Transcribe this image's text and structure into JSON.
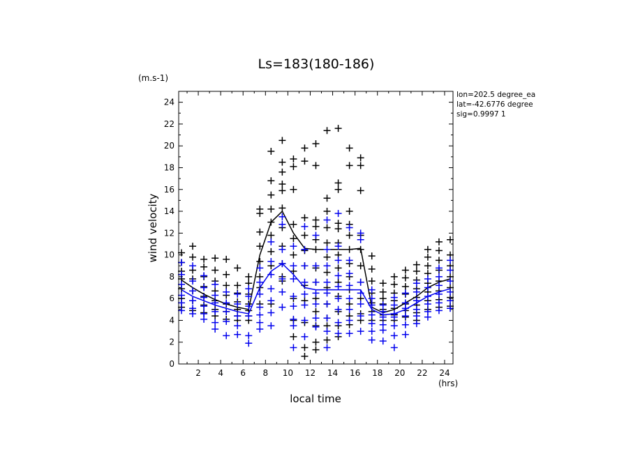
{
  "chart_data": {
    "type": "scatter",
    "title": "Ls=183(180-186)",
    "xlabel": "local time",
    "ylabel": "wind velocity",
    "x_unit": "(hrs)",
    "y_unit": "(m.s-1)",
    "xlim": [
      0.25,
      24.75
    ],
    "ylim": [
      0,
      25
    ],
    "xticks": [
      2,
      4,
      6,
      8,
      10,
      12,
      14,
      16,
      18,
      20,
      22,
      24
    ],
    "yticks": [
      0,
      2,
      4,
      6,
      8,
      10,
      12,
      14,
      16,
      18,
      20,
      22,
      24
    ],
    "grid": false,
    "info": [
      "lon=202.5 degree_ea",
      "lat=-42.6776 degree",
      "sig=0.9997 1"
    ],
    "x": [
      0.5,
      1.5,
      2.5,
      3.5,
      4.5,
      5.5,
      6.5,
      7.5,
      8.5,
      9.5,
      10.5,
      11.5,
      12.5,
      13.5,
      14.5,
      15.5,
      16.5,
      17.5,
      18.5,
      19.5,
      20.5,
      21.5,
      22.5,
      23.5,
      24.5
    ],
    "series": [
      {
        "color": "#000000",
        "mean": [
          7.7,
          7.0,
          6.4,
          5.9,
          5.5,
          5.2,
          5.0,
          10.0,
          13.0,
          14.0,
          12.0,
          10.6,
          10.5,
          10.5,
          10.5,
          10.5,
          10.6,
          5.2,
          4.7,
          5.0,
          5.6,
          6.2,
          7.0,
          7.5,
          7.8
        ],
        "points": [
          [
            10.2,
            9.3,
            8.5,
            7.8,
            6.9,
            6.0,
            5.2
          ],
          [
            10.8,
            9.8,
            8.6,
            7.8,
            6.7,
            5.8,
            4.9
          ],
          [
            9.6,
            8.9,
            8.0,
            7.1,
            6.2,
            5.4,
            4.7
          ],
          [
            9.7,
            8.6,
            7.6,
            6.7,
            5.8,
            5.0,
            4.4
          ],
          [
            9.6,
            8.2,
            7.2,
            6.3,
            5.5,
            4.8,
            4.1
          ],
          [
            8.8,
            7.2,
            6.5,
            5.7,
            5.0,
            4.4,
            4.0
          ],
          [
            8.0,
            7.4,
            6.4,
            5.5,
            4.9,
            4.4,
            4.0
          ],
          [
            14.2,
            13.8,
            12.1,
            10.8,
            9.4,
            8.0,
            7.0,
            5.5
          ],
          [
            19.5,
            16.8,
            15.5,
            14.2,
            13.0,
            11.8,
            10.3,
            9.0,
            5.5
          ],
          [
            20.5,
            18.5,
            17.6,
            16.5,
            15.9,
            14.3,
            12.5,
            10.8,
            9.2,
            8.0,
            7.6
          ],
          [
            18.8,
            18.1,
            16.0,
            12.8,
            11.5,
            10.0,
            8.5,
            6.0,
            4.0,
            2.5
          ],
          [
            19.8,
            18.6,
            13.4,
            11.8,
            10.4,
            9.0,
            7.2,
            5.8,
            3.8,
            1.5,
            0.7
          ],
          [
            20.2,
            18.2,
            13.2,
            12.6,
            11.4,
            10.5,
            8.8,
            7.5,
            6.0,
            4.8,
            3.5,
            2.0,
            1.3
          ],
          [
            21.4,
            15.2,
            14.0,
            12.5,
            11.1,
            9.8,
            8.4,
            7.0,
            5.5,
            4.2,
            3.5,
            2.2
          ],
          [
            21.6,
            16.6,
            16.0,
            12.9,
            12.4,
            11.1,
            10.0,
            8.8,
            7.5,
            6.2,
            4.8,
            3.5,
            2.5
          ],
          [
            19.8,
            18.2,
            14.0,
            12.8,
            11.8,
            10.5,
            9.2,
            8.0,
            6.8,
            5.5,
            4.4,
            3.6
          ],
          [
            18.9,
            18.2,
            15.9,
            11.8,
            10.5,
            9.0,
            7.5,
            6.0,
            4.6,
            4.0
          ],
          [
            9.9,
            8.7,
            7.6,
            6.5,
            5.6,
            4.8,
            4.0
          ],
          [
            7.4,
            6.6,
            6.0,
            5.5,
            5.0,
            4.5,
            4.0
          ],
          [
            8.0,
            7.3,
            6.5,
            5.8,
            5.1,
            4.5,
            4.0
          ],
          [
            8.6,
            7.9,
            7.1,
            6.4,
            5.5,
            4.9,
            4.3
          ],
          [
            9.1,
            8.5,
            7.7,
            6.9,
            6.1,
            5.4,
            4.7,
            4.0
          ],
          [
            10.5,
            9.8,
            9.0,
            8.3,
            7.4,
            6.6,
            5.8,
            5.0
          ],
          [
            11.2,
            10.4,
            9.5,
            8.6,
            7.6,
            6.7,
            5.9,
            5.2
          ],
          [
            11.4,
            10.0,
            9.0,
            8.0,
            7.0,
            6.1,
            5.3
          ]
        ]
      },
      {
        "color": "#0000ee",
        "mean": [
          6.8,
          6.2,
          5.8,
          5.4,
          5.1,
          4.8,
          4.6,
          7.0,
          8.5,
          9.2,
          8.2,
          7.0,
          6.8,
          6.8,
          6.8,
          6.8,
          6.8,
          5.0,
          4.5,
          4.6,
          5.0,
          5.6,
          6.2,
          6.6,
          6.9
        ],
        "points": [
          [
            9.3,
            8.2,
            7.3,
            6.3,
            5.6,
            4.9
          ],
          [
            9.0,
            7.6,
            6.7,
            5.8,
            5.1,
            4.6
          ],
          [
            8.1,
            7.0,
            6.1,
            5.3,
            4.6,
            4.1
          ],
          [
            7.3,
            6.3,
            5.6,
            4.8,
            3.8,
            3.2
          ],
          [
            6.6,
            5.6,
            4.8,
            3.9,
            2.6
          ],
          [
            6.4,
            5.5,
            4.4,
            3.5,
            2.7
          ],
          [
            6.9,
            6.2,
            5.3,
            4.4,
            2.6,
            1.9
          ],
          [
            8.8,
            7.5,
            6.4,
            5.2,
            4.5,
            3.8,
            3.2
          ],
          [
            11.2,
            9.4,
            8.2,
            6.9,
            5.8,
            4.7,
            3.5
          ],
          [
            13.5,
            12.8,
            10.5,
            9.2,
            7.8,
            6.6,
            5.2
          ],
          [
            10.8,
            9.0,
            7.8,
            6.2,
            5.3,
            4.1,
            3.5,
            1.5
          ],
          [
            12.6,
            10.5,
            9.0,
            7.5,
            6.4,
            5.4,
            4.0,
            2.5
          ],
          [
            11.8,
            9.0,
            7.5,
            6.5,
            5.5,
            4.2,
            3.4
          ],
          [
            13.2,
            10.5,
            9.0,
            7.5,
            6.5,
            5.5,
            4.2,
            3.0,
            1.5
          ],
          [
            13.8,
            10.8,
            9.5,
            8.1,
            7.1,
            6.0,
            5.0,
            3.8,
            2.8
          ],
          [
            12.5,
            9.5,
            8.3,
            7.2,
            6.0,
            5.0,
            4.0,
            2.8
          ],
          [
            12.0,
            11.4,
            7.5,
            6.5,
            5.5,
            4.4,
            3.0
          ],
          [
            6.8,
            6.0,
            5.4,
            4.5,
            3.7,
            3.0,
            2.2
          ],
          [
            5.4,
            4.8,
            4.3,
            3.6,
            3.1,
            2.1
          ],
          [
            6.1,
            5.4,
            4.6,
            4.3,
            3.5,
            2.6,
            1.5
          ],
          [
            6.5,
            5.6,
            5.1,
            4.4,
            3.6,
            2.7
          ],
          [
            7.4,
            6.6,
            5.8,
            5.0,
            4.4,
            3.7
          ],
          [
            7.8,
            7.0,
            6.2,
            5.5,
            4.8,
            4.3
          ],
          [
            8.8,
            8.0,
            7.2,
            6.4,
            5.6,
            4.9
          ],
          [
            9.5,
            8.6,
            7.6,
            6.6,
            5.8,
            5.1
          ]
        ]
      }
    ]
  }
}
